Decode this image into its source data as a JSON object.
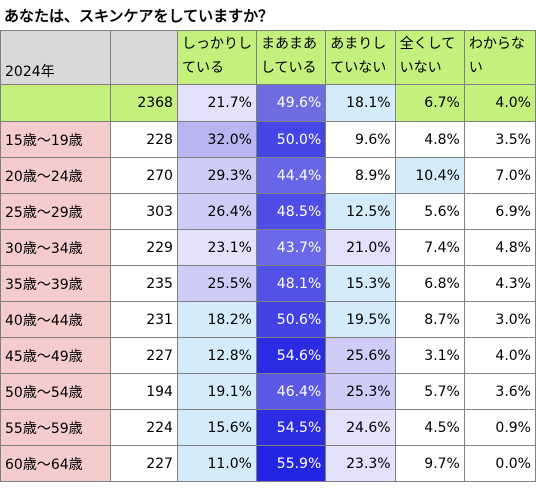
{
  "title": "あなたは、スキンケアをしていますか？",
  "chart_data": {
    "type": "table",
    "year_label": "2024年",
    "columns": [
      [
        "しっかりし",
        "ている"
      ],
      [
        "まあまあ",
        "している"
      ],
      [
        "あまりし",
        "ていない"
      ],
      [
        "全くして",
        "いない"
      ],
      [
        "わからな",
        "い"
      ]
    ],
    "total": {
      "n": "2368",
      "values": [
        "21.7%",
        "49.6%",
        "18.1%",
        "6.7%",
        "4.0%"
      ]
    },
    "rows": [
      {
        "age": "15歳～19歳",
        "n": "228",
        "values": [
          "32.0%",
          "50.0%",
          "9.6%",
          "4.8%",
          "3.5%"
        ]
      },
      {
        "age": "20歳～24歳",
        "n": "270",
        "values": [
          "29.3%",
          "44.4%",
          "8.9%",
          "10.4%",
          "7.0%"
        ]
      },
      {
        "age": "25歳～29歳",
        "n": "303",
        "values": [
          "26.4%",
          "48.5%",
          "12.5%",
          "5.6%",
          "6.9%"
        ]
      },
      {
        "age": "30歳～34歳",
        "n": "229",
        "values": [
          "23.1%",
          "43.7%",
          "21.0%",
          "7.4%",
          "4.8%"
        ]
      },
      {
        "age": "35歳～39歳",
        "n": "235",
        "values": [
          "25.5%",
          "48.1%",
          "15.3%",
          "6.8%",
          "4.3%"
        ]
      },
      {
        "age": "40歳～44歳",
        "n": "231",
        "values": [
          "18.2%",
          "50.6%",
          "19.5%",
          "8.7%",
          "3.0%"
        ]
      },
      {
        "age": "45歳～49歳",
        "n": "227",
        "values": [
          "12.8%",
          "54.6%",
          "25.6%",
          "3.1%",
          "4.0%"
        ]
      },
      {
        "age": "50歳～54歳",
        "n": "194",
        "values": [
          "19.1%",
          "46.4%",
          "25.3%",
          "5.7%",
          "3.6%"
        ]
      },
      {
        "age": "55歳～59歳",
        "n": "224",
        "values": [
          "15.6%",
          "54.5%",
          "24.6%",
          "4.5%",
          "0.9%"
        ]
      },
      {
        "age": "60歳～64歳",
        "n": "227",
        "values": [
          "11.0%",
          "55.9%",
          "23.3%",
          "9.7%",
          "0.0%"
        ]
      }
    ]
  }
}
